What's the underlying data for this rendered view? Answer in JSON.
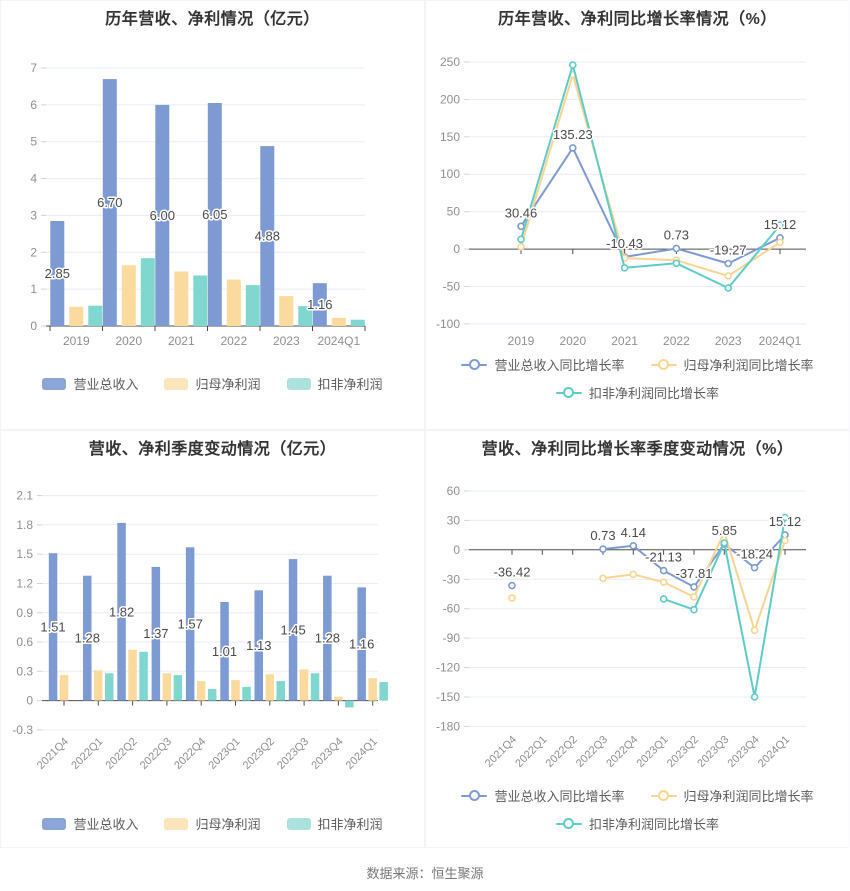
{
  "footer": {
    "source": "数据来源：恒生聚源"
  },
  "palette": {
    "revenue_blue": "#7D9AD3",
    "net_profit_orange": "#FBDA9D",
    "deducted_profit_teal": "#7FD7CF",
    "line_orange": "#F9D591",
    "line_teal": "#5ECBC8",
    "grid": "#E7ECF5",
    "axis": "#4D4D4D",
    "tick_text": "#8F8F8F",
    "value_label": "#4A4A4A"
  },
  "chart_data": [
    {
      "type": "bar",
      "title": "历年营收、净利情况（亿元）",
      "xlabel": "",
      "ylabel": "",
      "categories": [
        "2019",
        "2020",
        "2021",
        "2022",
        "2023",
        "2024Q1"
      ],
      "yticks": [
        7,
        6,
        5,
        4,
        3,
        2,
        1,
        0
      ],
      "ylim": [
        0,
        7
      ],
      "grid": true,
      "legend_position": "bottom",
      "legend_rows": [
        3
      ],
      "series": [
        {
          "name": "营业总收入",
          "color": "#7D9AD3",
          "legend_color": "#8BA5D8",
          "values": [
            2.85,
            6.7,
            6.0,
            6.05,
            4.88,
            1.16
          ],
          "label_texts": [
            "2.85",
            "6.70",
            "6.00",
            "6.05",
            "4.88",
            "1.16"
          ]
        },
        {
          "name": "归母净利润",
          "color": "#FBDA9D",
          "legend_color": "#FCE5BA",
          "values": [
            0.52,
            1.65,
            1.48,
            1.26,
            0.81,
            0.22
          ]
        },
        {
          "name": "扣非净利润",
          "color": "#7FD7CF",
          "legend_color": "#ACE2DD",
          "values": [
            0.55,
            1.84,
            1.37,
            1.11,
            0.54,
            0.17
          ]
        }
      ]
    },
    {
      "type": "line",
      "title": "历年营收、净利同比增长率情况（%）",
      "xlabel": "",
      "ylabel": "",
      "categories": [
        "2019",
        "2020",
        "2021",
        "2022",
        "2023",
        "2024Q1"
      ],
      "yticks": [
        250,
        200,
        150,
        100,
        50,
        0,
        -50,
        -100
      ],
      "ylim": [
        -100,
        250
      ],
      "grid": true,
      "legend_position": "bottom",
      "legend_rows": [
        2,
        1
      ],
      "series": [
        {
          "name": "营业总收入同比增长率",
          "color": "#7D9AD3",
          "values": [
            30.46,
            135.23,
            -10.43,
            0.73,
            -19.27,
            15.12
          ],
          "label_texts": [
            "30.46",
            "135.23",
            "-10.43",
            "0.73",
            "-19.27",
            "15.12"
          ]
        },
        {
          "name": "归母净利润同比增长率",
          "color": "#F9D591",
          "values": [
            3,
            233,
            -12,
            -15,
            -36,
            9
          ]
        },
        {
          "name": "扣非净利润同比增长率",
          "color": "#5ECBC8",
          "values": [
            13,
            246,
            -25,
            -19,
            -52,
            32
          ]
        }
      ]
    },
    {
      "type": "bar",
      "title": "营收、净利季度变动情况（亿元）",
      "xlabel": "",
      "ylabel": "",
      "categories": [
        "2021Q4",
        "2022Q1",
        "2022Q2",
        "2022Q3",
        "2022Q4",
        "2023Q1",
        "2023Q2",
        "2023Q3",
        "2023Q4",
        "2024Q1"
      ],
      "yticks": [
        2.1,
        1.8,
        1.5,
        1.2,
        0.9,
        0.6,
        0.3,
        0,
        -0.3
      ],
      "ylim": [
        -0.3,
        2.1
      ],
      "grid": true,
      "x_labels_rotated": true,
      "legend_position": "bottom",
      "legend_rows": [
        3
      ],
      "series": [
        {
          "name": "营业总收入",
          "color": "#7D9AD3",
          "legend_color": "#8BA5D8",
          "values": [
            1.51,
            1.28,
            1.82,
            1.37,
            1.57,
            1.01,
            1.13,
            1.45,
            1.28,
            1.16
          ],
          "label_texts": [
            "1.51",
            "1.28",
            "1.82",
            "1.37",
            "1.57",
            "1.01",
            "1.13",
            "1.45",
            "1.28",
            "1.16"
          ]
        },
        {
          "name": "归母净利润",
          "color": "#FBDA9D",
          "legend_color": "#FCE5BA",
          "values": [
            0.26,
            0.31,
            0.52,
            0.28,
            0.2,
            0.21,
            0.27,
            0.32,
            0.04,
            0.23
          ]
        },
        {
          "name": "扣非净利润",
          "color": "#7FD7CF",
          "legend_color": "#ACE2DD",
          "values": [
            null,
            0.28,
            0.5,
            0.26,
            0.12,
            0.14,
            0.2,
            0.28,
            -0.07,
            0.19
          ]
        }
      ]
    },
    {
      "type": "line",
      "title": "营收、净利同比增长率季度变动情况（%）",
      "xlabel": "",
      "ylabel": "",
      "categories": [
        "2021Q4",
        "2022Q1",
        "2022Q2",
        "2022Q3",
        "2022Q4",
        "2023Q1",
        "2023Q2",
        "2023Q3",
        "2023Q4",
        "2024Q1"
      ],
      "yticks": [
        60,
        30,
        0,
        -30,
        -60,
        -90,
        -120,
        -150,
        -180
      ],
      "ylim": [
        -180,
        60
      ],
      "grid": true,
      "x_labels_rotated": true,
      "legend_position": "bottom",
      "legend_rows": [
        2,
        1
      ],
      "series": [
        {
          "name": "营业总收入同比增长率",
          "color": "#7D9AD3",
          "values": [
            -36.42,
            null,
            null,
            0.73,
            4.14,
            -21.13,
            -37.81,
            5.85,
            -18.24,
            15.12
          ],
          "label_texts": [
            "-36.42",
            null,
            null,
            "0.73",
            "4.14",
            "-21.13",
            "-37.81",
            "5.85",
            "-18.24",
            "15.12"
          ]
        },
        {
          "name": "归母净利润同比增长率",
          "color": "#F9D591",
          "values": [
            -49,
            null,
            null,
            -29,
            -25,
            -33,
            -48,
            18,
            -82,
            9.5
          ]
        },
        {
          "name": "扣非净利润同比增长率",
          "color": "#5ECBC8",
          "values": [
            null,
            null,
            null,
            null,
            null,
            -50,
            -61,
            7,
            -150,
            33
          ]
        }
      ]
    }
  ]
}
